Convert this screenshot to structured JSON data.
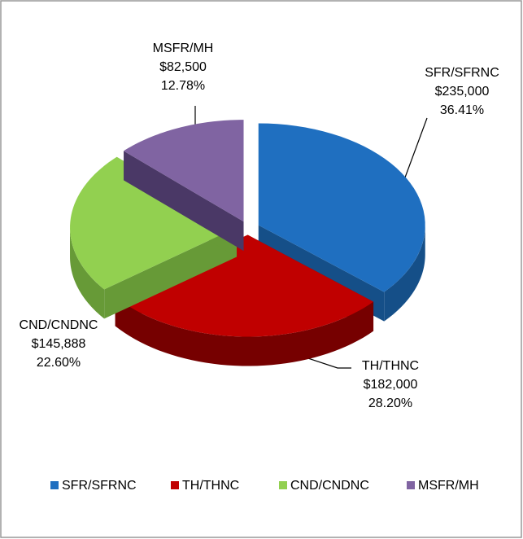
{
  "chart_data": {
    "type": "pie",
    "categories": [
      "SFR/SFRNC",
      "TH/THNC",
      "CND/CNDNC",
      "MSFR/MH"
    ],
    "values": [
      235000,
      182000,
      145888,
      82500
    ],
    "value_labels": [
      "$235,000",
      "$182,000",
      "$145,888",
      "$82,500"
    ],
    "percentages": [
      36.41,
      28.2,
      22.6,
      12.78
    ],
    "percentage_labels": [
      "36.41%",
      "28.20%",
      "22.60%",
      "12.78%"
    ],
    "colors": [
      "#1f6fc0",
      "#c00000",
      "#92d050",
      "#8064a2"
    ],
    "side_colors": [
      "#154f88",
      "#760000",
      "#679a37",
      "#4a3866"
    ],
    "legend": "bottom"
  }
}
